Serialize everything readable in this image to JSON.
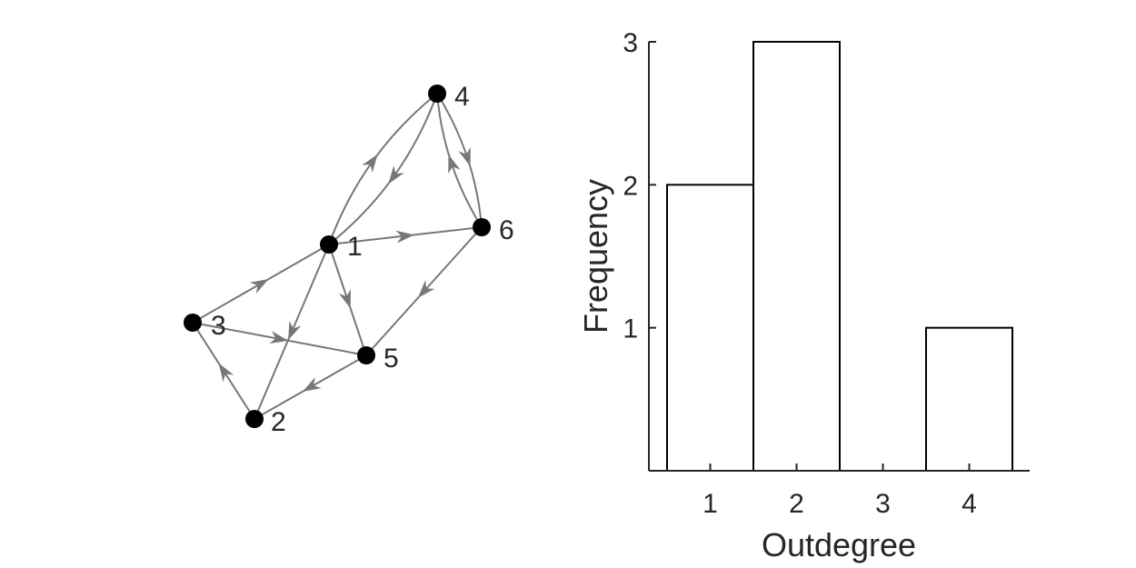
{
  "graph": {
    "nodes": [
      {
        "id": "1",
        "label": "1"
      },
      {
        "id": "2",
        "label": "2"
      },
      {
        "id": "3",
        "label": "3"
      },
      {
        "id": "4",
        "label": "4"
      },
      {
        "id": "5",
        "label": "5"
      },
      {
        "id": "6",
        "label": "6"
      }
    ],
    "edges": [
      {
        "from": "1",
        "to": "4"
      },
      {
        "from": "1",
        "to": "6"
      },
      {
        "from": "1",
        "to": "5"
      },
      {
        "from": "1",
        "to": "2"
      },
      {
        "from": "2",
        "to": "3"
      },
      {
        "from": "3",
        "to": "1"
      },
      {
        "from": "3",
        "to": "5"
      },
      {
        "from": "4",
        "to": "1"
      },
      {
        "from": "4",
        "to": "6"
      },
      {
        "from": "5",
        "to": "2"
      },
      {
        "from": "6",
        "to": "4"
      },
      {
        "from": "6",
        "to": "5"
      }
    ],
    "edge_color": "#777777",
    "node_color": "#000000"
  },
  "chart_data": {
    "type": "bar",
    "categories": [
      "1",
      "2",
      "3",
      "4"
    ],
    "values": [
      2,
      3,
      0,
      1
    ],
    "xlabel": "Outdegree",
    "ylabel": "Frequency",
    "ylim": [
      0,
      3
    ],
    "yticks": [
      "1",
      "2",
      "3"
    ],
    "bar_fill": "#ffffff",
    "bar_stroke": "#000000",
    "grid": false
  }
}
